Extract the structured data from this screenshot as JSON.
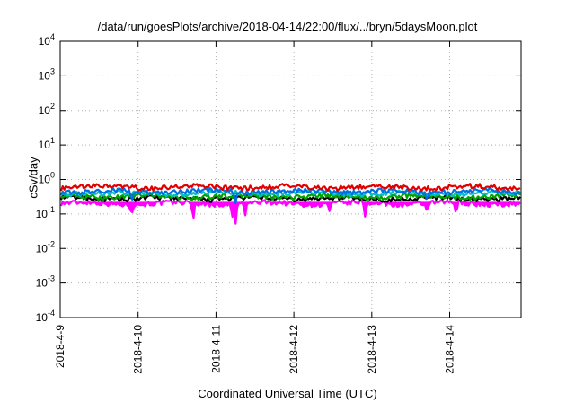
{
  "chart_data": {
    "type": "line",
    "title": "/data/run/goesPlots/archive/2018-04-14/22:00/flux/../bryn/5daysMoon.plot",
    "xlabel": "Coordinated Universal Time (UTC)",
    "ylabel": "cSv/day",
    "yscale": "log",
    "ylim": [
      0.0001,
      10000
    ],
    "xlim": [
      "2018-04-09 00:00",
      "2018-04-14 22:00"
    ],
    "yticks": [
      {
        "base": "10",
        "exp": "-4"
      },
      {
        "base": "10",
        "exp": "-3"
      },
      {
        "base": "10",
        "exp": "-2"
      },
      {
        "base": "10",
        "exp": "-1"
      },
      {
        "base": "10",
        "exp": "0"
      },
      {
        "base": "10",
        "exp": "1"
      },
      {
        "base": "10",
        "exp": "2"
      },
      {
        "base": "10",
        "exp": "3"
      },
      {
        "base": "10",
        "exp": "4"
      }
    ],
    "xticks": [
      "2018-4-9",
      "2018-4-10",
      "2018-4-11",
      "2018-4-12",
      "2018-4-13",
      "2018-4-14"
    ],
    "grid": true,
    "series": [
      {
        "color": "#ff00ff",
        "level": 0.2,
        "dips": [
          [
            "2018-04-09 22:00",
            0.1
          ],
          [
            "2018-04-10 17:00",
            0.07
          ],
          [
            "2018-04-11 05:00",
            0.08
          ],
          [
            "2018-04-11 06:00",
            0.05
          ],
          [
            "2018-04-11 09:00",
            0.09
          ],
          [
            "2018-04-12 11:00",
            0.12
          ],
          [
            "2018-04-12 22:00",
            0.08
          ],
          [
            "2018-04-13 17:00",
            0.12
          ],
          [
            "2018-04-14 02:00",
            0.1
          ]
        ]
      },
      {
        "color": "#000000",
        "level": 0.28,
        "dips": []
      },
      {
        "color": "#00a000",
        "level": 0.32,
        "dips": []
      },
      {
        "color": "#00c0c0",
        "level": 0.4,
        "dips": []
      },
      {
        "color": "#0070e0",
        "level": 0.45,
        "dips": [
          [
            "2018-04-09 22:00",
            0.22
          ],
          [
            "2018-04-11 06:00",
            0.2
          ],
          [
            "2018-04-13 17:00",
            0.25
          ]
        ]
      },
      {
        "color": "#e00000",
        "level": 0.6,
        "dips": []
      }
    ]
  }
}
